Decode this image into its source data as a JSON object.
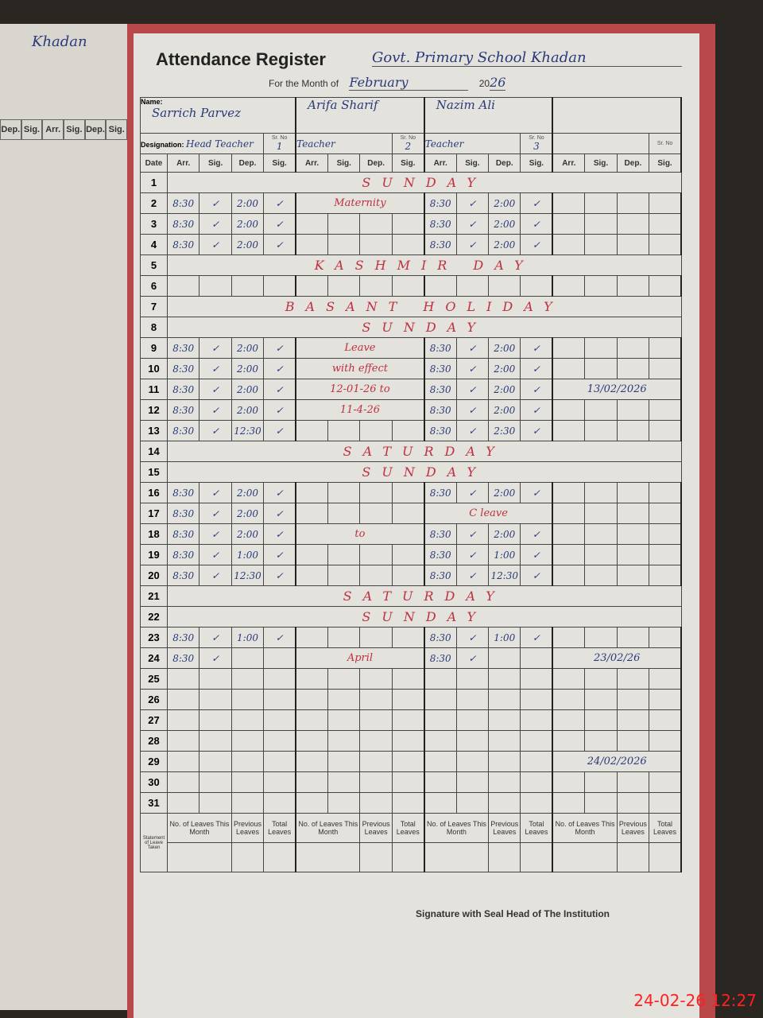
{
  "left_page": {
    "heading": "Khadan",
    "columns": [
      "Dep.",
      "Sig.",
      "Arr.",
      "Sig.",
      "Dep.",
      "Sig."
    ]
  },
  "register": {
    "title": "Attendance Register",
    "school": "Govt. Primary School Khadan",
    "month_label": "For the Month of",
    "month": "February",
    "year_prefix": "20",
    "year": "26",
    "name_label": "Name:",
    "designation_label": "Designation:",
    "sr_label": "Sr. No",
    "date_header": "Date",
    "col_headers": [
      "Arr.",
      "Sig.",
      "Dep.",
      "Sig."
    ],
    "teachers": [
      {
        "name": "Sarrich Parvez",
        "designation": "Head Teacher",
        "sr": "1"
      },
      {
        "name": "Arifa Sharif",
        "designation": "Teacher",
        "sr": "2"
      },
      {
        "name": "Nazim Ali",
        "designation": "Teacher",
        "sr": "3"
      },
      {
        "name": "",
        "designation": "",
        "sr": ""
      }
    ],
    "rows": [
      {
        "d": "1",
        "t": [
          [
            "",
            "",
            "",
            ""
          ],
          [
            "",
            "",
            "",
            ""
          ],
          [
            "",
            "",
            "",
            ""
          ],
          [
            "",
            "",
            "",
            ""
          ]
        ]
      },
      {
        "d": "2",
        "t": [
          [
            "8:30",
            "✓",
            "2:00",
            "✓"
          ],
          [
            "",
            "",
            "",
            ""
          ],
          [
            "8:30",
            "✓",
            "2:00",
            "✓"
          ],
          [
            "",
            "",
            "",
            ""
          ]
        ]
      },
      {
        "d": "3",
        "t": [
          [
            "8:30",
            "✓",
            "2:00",
            "✓"
          ],
          [
            "",
            "",
            "",
            ""
          ],
          [
            "8:30",
            "✓",
            "2:00",
            "✓"
          ],
          [
            "",
            "",
            "",
            ""
          ]
        ]
      },
      {
        "d": "4",
        "t": [
          [
            "8:30",
            "✓",
            "2:00",
            "✓"
          ],
          [
            "",
            "",
            "",
            ""
          ],
          [
            "8:30",
            "✓",
            "2:00",
            "✓"
          ],
          [
            "",
            "",
            "",
            ""
          ]
        ]
      },
      {
        "d": "5",
        "t": [
          [
            "",
            "",
            "",
            ""
          ],
          [
            "",
            "",
            "",
            ""
          ],
          [
            "",
            "",
            "",
            ""
          ],
          [
            "",
            "",
            "",
            ""
          ]
        ]
      },
      {
        "d": "6",
        "t": [
          [
            "",
            "",
            "",
            ""
          ],
          [
            "",
            "",
            "",
            ""
          ],
          [
            "",
            "",
            "",
            ""
          ],
          [
            "",
            "",
            "",
            ""
          ]
        ]
      },
      {
        "d": "7",
        "t": [
          [
            "",
            "",
            "",
            ""
          ],
          [
            "",
            "",
            "",
            ""
          ],
          [
            "",
            "",
            "",
            ""
          ],
          [
            "",
            "",
            "",
            ""
          ]
        ]
      },
      {
        "d": "8",
        "t": [
          [
            "",
            "",
            "",
            ""
          ],
          [
            "",
            "",
            "",
            ""
          ],
          [
            "",
            "",
            "",
            ""
          ],
          [
            "",
            "",
            "",
            ""
          ]
        ]
      },
      {
        "d": "9",
        "t": [
          [
            "8:30",
            "✓",
            "2:00",
            "✓"
          ],
          [
            "",
            "",
            "",
            ""
          ],
          [
            "8:30",
            "✓",
            "2:00",
            "✓"
          ],
          [
            "",
            "",
            "",
            ""
          ]
        ]
      },
      {
        "d": "10",
        "t": [
          [
            "8:30",
            "✓",
            "2:00",
            "✓"
          ],
          [
            "",
            "",
            "",
            ""
          ],
          [
            "8:30",
            "✓",
            "2:00",
            "✓"
          ],
          [
            "",
            "",
            "",
            ""
          ]
        ]
      },
      {
        "d": "11",
        "t": [
          [
            "8:30",
            "✓",
            "2:00",
            "✓"
          ],
          [
            "",
            "",
            "",
            ""
          ],
          [
            "8:30",
            "✓",
            "2:00",
            "✓"
          ],
          [
            "",
            "",
            "",
            ""
          ]
        ]
      },
      {
        "d": "12",
        "t": [
          [
            "8:30",
            "✓",
            "2:00",
            "✓"
          ],
          [
            "",
            "",
            "",
            ""
          ],
          [
            "8:30",
            "✓",
            "2:00",
            "✓"
          ],
          [
            "",
            "",
            "",
            ""
          ]
        ]
      },
      {
        "d": "13",
        "t": [
          [
            "8:30",
            "✓",
            "12:30",
            "✓"
          ],
          [
            "",
            "",
            "",
            ""
          ],
          [
            "8:30",
            "✓",
            "2:30",
            "✓"
          ],
          [
            "",
            "",
            "",
            ""
          ]
        ]
      },
      {
        "d": "14",
        "t": [
          [
            "",
            "",
            "",
            ""
          ],
          [
            "",
            "",
            "",
            ""
          ],
          [
            "",
            "",
            "",
            ""
          ],
          [
            "",
            "",
            "",
            ""
          ]
        ]
      },
      {
        "d": "15",
        "t": [
          [
            "",
            "",
            "",
            ""
          ],
          [
            "",
            "",
            "",
            ""
          ],
          [
            "",
            "",
            "",
            ""
          ],
          [
            "",
            "",
            "",
            ""
          ]
        ]
      },
      {
        "d": "16",
        "t": [
          [
            "8:30",
            "✓",
            "2:00",
            "✓"
          ],
          [
            "",
            "",
            "",
            ""
          ],
          [
            "8:30",
            "✓",
            "2:00",
            "✓"
          ],
          [
            "",
            "",
            "",
            ""
          ]
        ]
      },
      {
        "d": "17",
        "t": [
          [
            "8:30",
            "✓",
            "2:00",
            "✓"
          ],
          [
            "",
            "",
            "",
            ""
          ],
          [
            "",
            "",
            "",
            ""
          ],
          [
            "",
            "",
            "",
            ""
          ]
        ]
      },
      {
        "d": "18",
        "t": [
          [
            "8:30",
            "✓",
            "2:00",
            "✓"
          ],
          [
            "",
            "",
            "",
            ""
          ],
          [
            "8:30",
            "✓",
            "2:00",
            "✓"
          ],
          [
            "",
            "",
            "",
            ""
          ]
        ]
      },
      {
        "d": "19",
        "t": [
          [
            "8:30",
            "✓",
            "1:00",
            "✓"
          ],
          [
            "",
            "",
            "",
            ""
          ],
          [
            "8:30",
            "✓",
            "1:00",
            "✓"
          ],
          [
            "",
            "",
            "",
            ""
          ]
        ]
      },
      {
        "d": "20",
        "t": [
          [
            "8:30",
            "✓",
            "12:30",
            "✓"
          ],
          [
            "",
            "",
            "",
            ""
          ],
          [
            "8:30",
            "✓",
            "12:30",
            "✓"
          ],
          [
            "",
            "",
            "",
            ""
          ]
        ]
      },
      {
        "d": "21",
        "t": [
          [
            "",
            "",
            "",
            ""
          ],
          [
            "",
            "",
            "",
            ""
          ],
          [
            "",
            "",
            "",
            ""
          ],
          [
            "",
            "",
            "",
            ""
          ]
        ]
      },
      {
        "d": "22",
        "t": [
          [
            "",
            "",
            "",
            ""
          ],
          [
            "",
            "",
            "",
            ""
          ],
          [
            "",
            "",
            "",
            ""
          ],
          [
            "",
            "",
            "",
            ""
          ]
        ]
      },
      {
        "d": "23",
        "t": [
          [
            "8:30",
            "✓",
            "1:00",
            "✓"
          ],
          [
            "",
            "",
            "",
            ""
          ],
          [
            "8:30",
            "✓",
            "1:00",
            "✓"
          ],
          [
            "",
            "",
            "",
            ""
          ]
        ]
      },
      {
        "d": "24",
        "t": [
          [
            "8:30",
            "✓",
            "",
            ""
          ],
          [
            "",
            "",
            "",
            ""
          ],
          [
            "8:30",
            "✓",
            "",
            ""
          ],
          [
            "",
            "",
            "",
            ""
          ]
        ]
      },
      {
        "d": "25",
        "t": []
      },
      {
        "d": "26",
        "t": []
      },
      {
        "d": "27",
        "t": []
      },
      {
        "d": "28",
        "t": []
      },
      {
        "d": "29",
        "t": []
      },
      {
        "d": "30",
        "t": []
      },
      {
        "d": "31",
        "t": []
      }
    ],
    "statement_label": "Statement of Leave Taken",
    "footer_headers": [
      "No. of Leaves This Month",
      "Previous Leaves",
      "Total Leaves"
    ],
    "signature_label": "Signature with Seal Head of The Institution"
  },
  "annotations": {
    "r1": "SUNDAY",
    "r5": "KASHMIR DAY",
    "r7": "BASANT HOLIDAY",
    "r8": "SUNDAY",
    "maternity": "Maternity",
    "leave1": "Leave",
    "leave2": "with effect",
    "leave3": "12-01-26 to",
    "leave4": "11-4-26",
    "r14": "SATURDAY",
    "r15": "SUNDAY",
    "c_leave": "C leave",
    "to": "to",
    "r21": "SATURDAY",
    "r22": "SUNDAY",
    "april": "April",
    "sign_dates": [
      "13/02/2026",
      "23/02/26",
      "24/02/2026"
    ]
  },
  "timestamp": "24-02-26  12:27"
}
